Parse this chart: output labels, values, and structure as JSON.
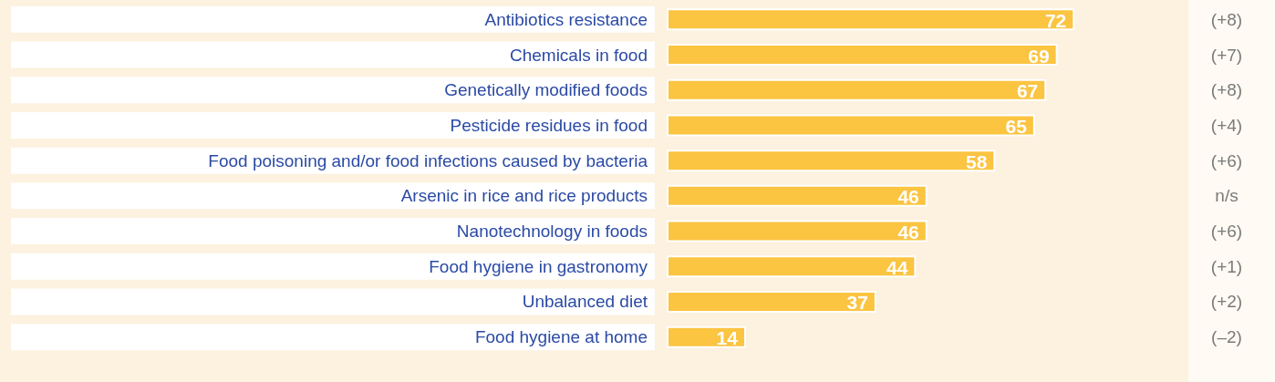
{
  "chart_data": {
    "type": "bar",
    "orientation": "horizontal",
    "categories": [
      "Antibiotics resistance",
      "Chemicals in food",
      "Genetically modified foods",
      "Pesticide residues in food",
      "Food poisoning and/or food infections caused by bacteria",
      "Arsenic in rice and rice products",
      "Nanotechnology in foods",
      "Food hygiene in gastronomy",
      "Unbalanced diet",
      "Food hygiene at home"
    ],
    "values": [
      72,
      69,
      67,
      65,
      58,
      46,
      46,
      44,
      37,
      14
    ],
    "color": "#fbc441",
    "data_labels": true,
    "annotations": [
      "(+8)",
      "(+7)",
      "(+8)",
      "(+4)",
      "(+6)",
      "n/s",
      "(+6)",
      "(+1)",
      "(+2)",
      "(–2)"
    ]
  }
}
